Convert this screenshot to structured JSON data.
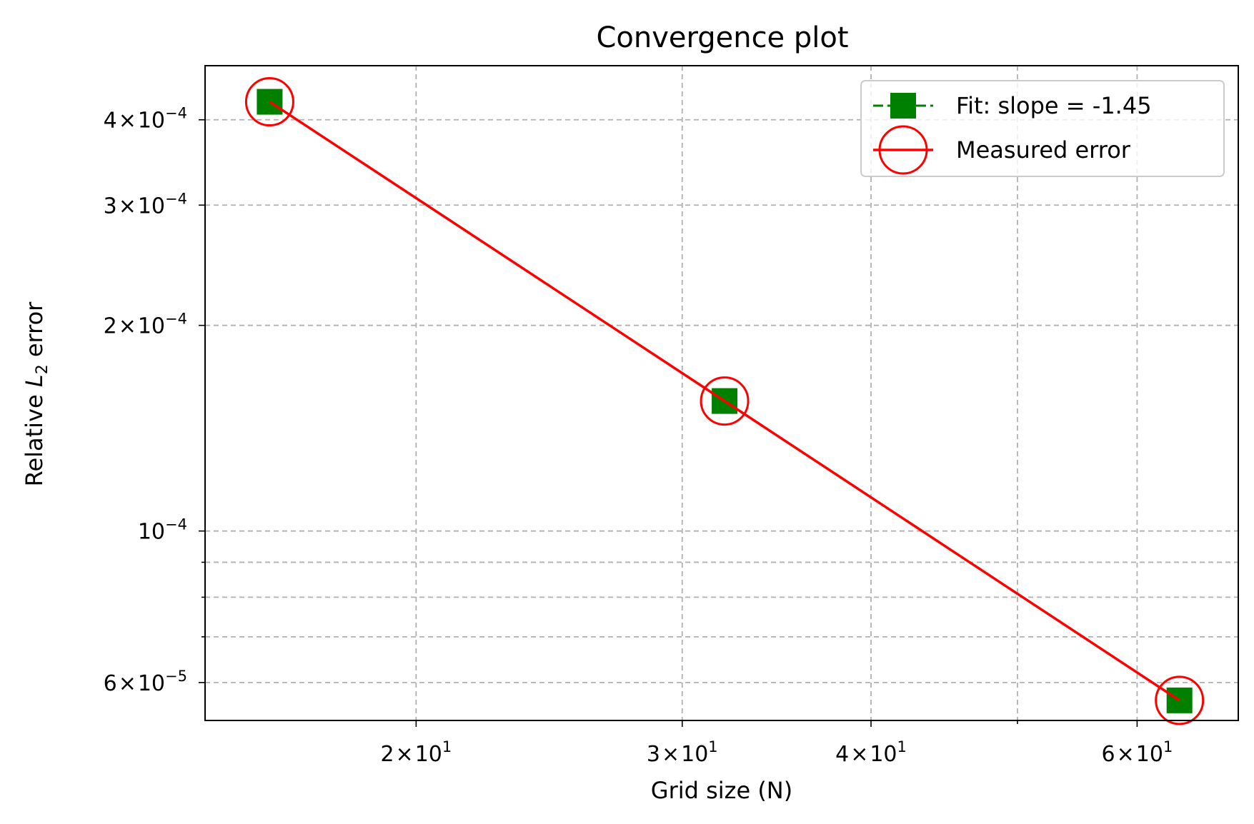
{
  "chart_data": {
    "type": "line",
    "title": "Convergence plot",
    "xlabel": "Grid size (N)",
    "ylabel_prefix": "Relative ",
    "ylabel_var": "L",
    "ylabel_sub": "2",
    "ylabel_suffix": " error",
    "xscale": "log",
    "yscale": "log",
    "xlim": [
      14.5,
      70
    ],
    "ylim": [
      5.28e-05,
      0.00048
    ],
    "grid": true,
    "x_major_ticks": [
      {
        "value": 20,
        "mantissa": "2",
        "base": "10",
        "exp": "1"
      },
      {
        "value": 30,
        "mantissa": "3",
        "base": "10",
        "exp": "1"
      },
      {
        "value": 40,
        "mantissa": "4",
        "base": "10",
        "exp": "1"
      },
      {
        "value": 60,
        "mantissa": "6",
        "base": "10",
        "exp": "1"
      }
    ],
    "x_minor_ticks": [
      50
    ],
    "y_major_ticks": [
      {
        "value": 0.0004,
        "mantissa": "4",
        "base": "10",
        "exp": "−4"
      },
      {
        "value": 0.0003,
        "mantissa": "3",
        "base": "10",
        "exp": "−4"
      },
      {
        "value": 0.0002,
        "mantissa": "2",
        "base": "10",
        "exp": "−4"
      },
      {
        "value": 0.0001,
        "mantissa": "",
        "base": "10",
        "exp": "−4"
      },
      {
        "value": 6e-05,
        "mantissa": "6",
        "base": "10",
        "exp": "−5"
      }
    ],
    "y_minor_ticks": [
      9e-05,
      8e-05,
      7e-05
    ],
    "series": [
      {
        "name": "Fit: slope = -1.45",
        "color": "#008000",
        "marker": "square",
        "linestyle": "dashed",
        "x": [
          16,
          32,
          64
        ],
        "y": [
          0.000425,
          0.000155,
          5.65e-05
        ]
      },
      {
        "name": "Measured error",
        "color": "#ff0000",
        "marker": "open-circle",
        "linestyle": "solid",
        "x": [
          16,
          32,
          64
        ],
        "y": [
          0.000425,
          0.000155,
          5.65e-05
        ]
      }
    ],
    "legend_position": "top-right"
  }
}
